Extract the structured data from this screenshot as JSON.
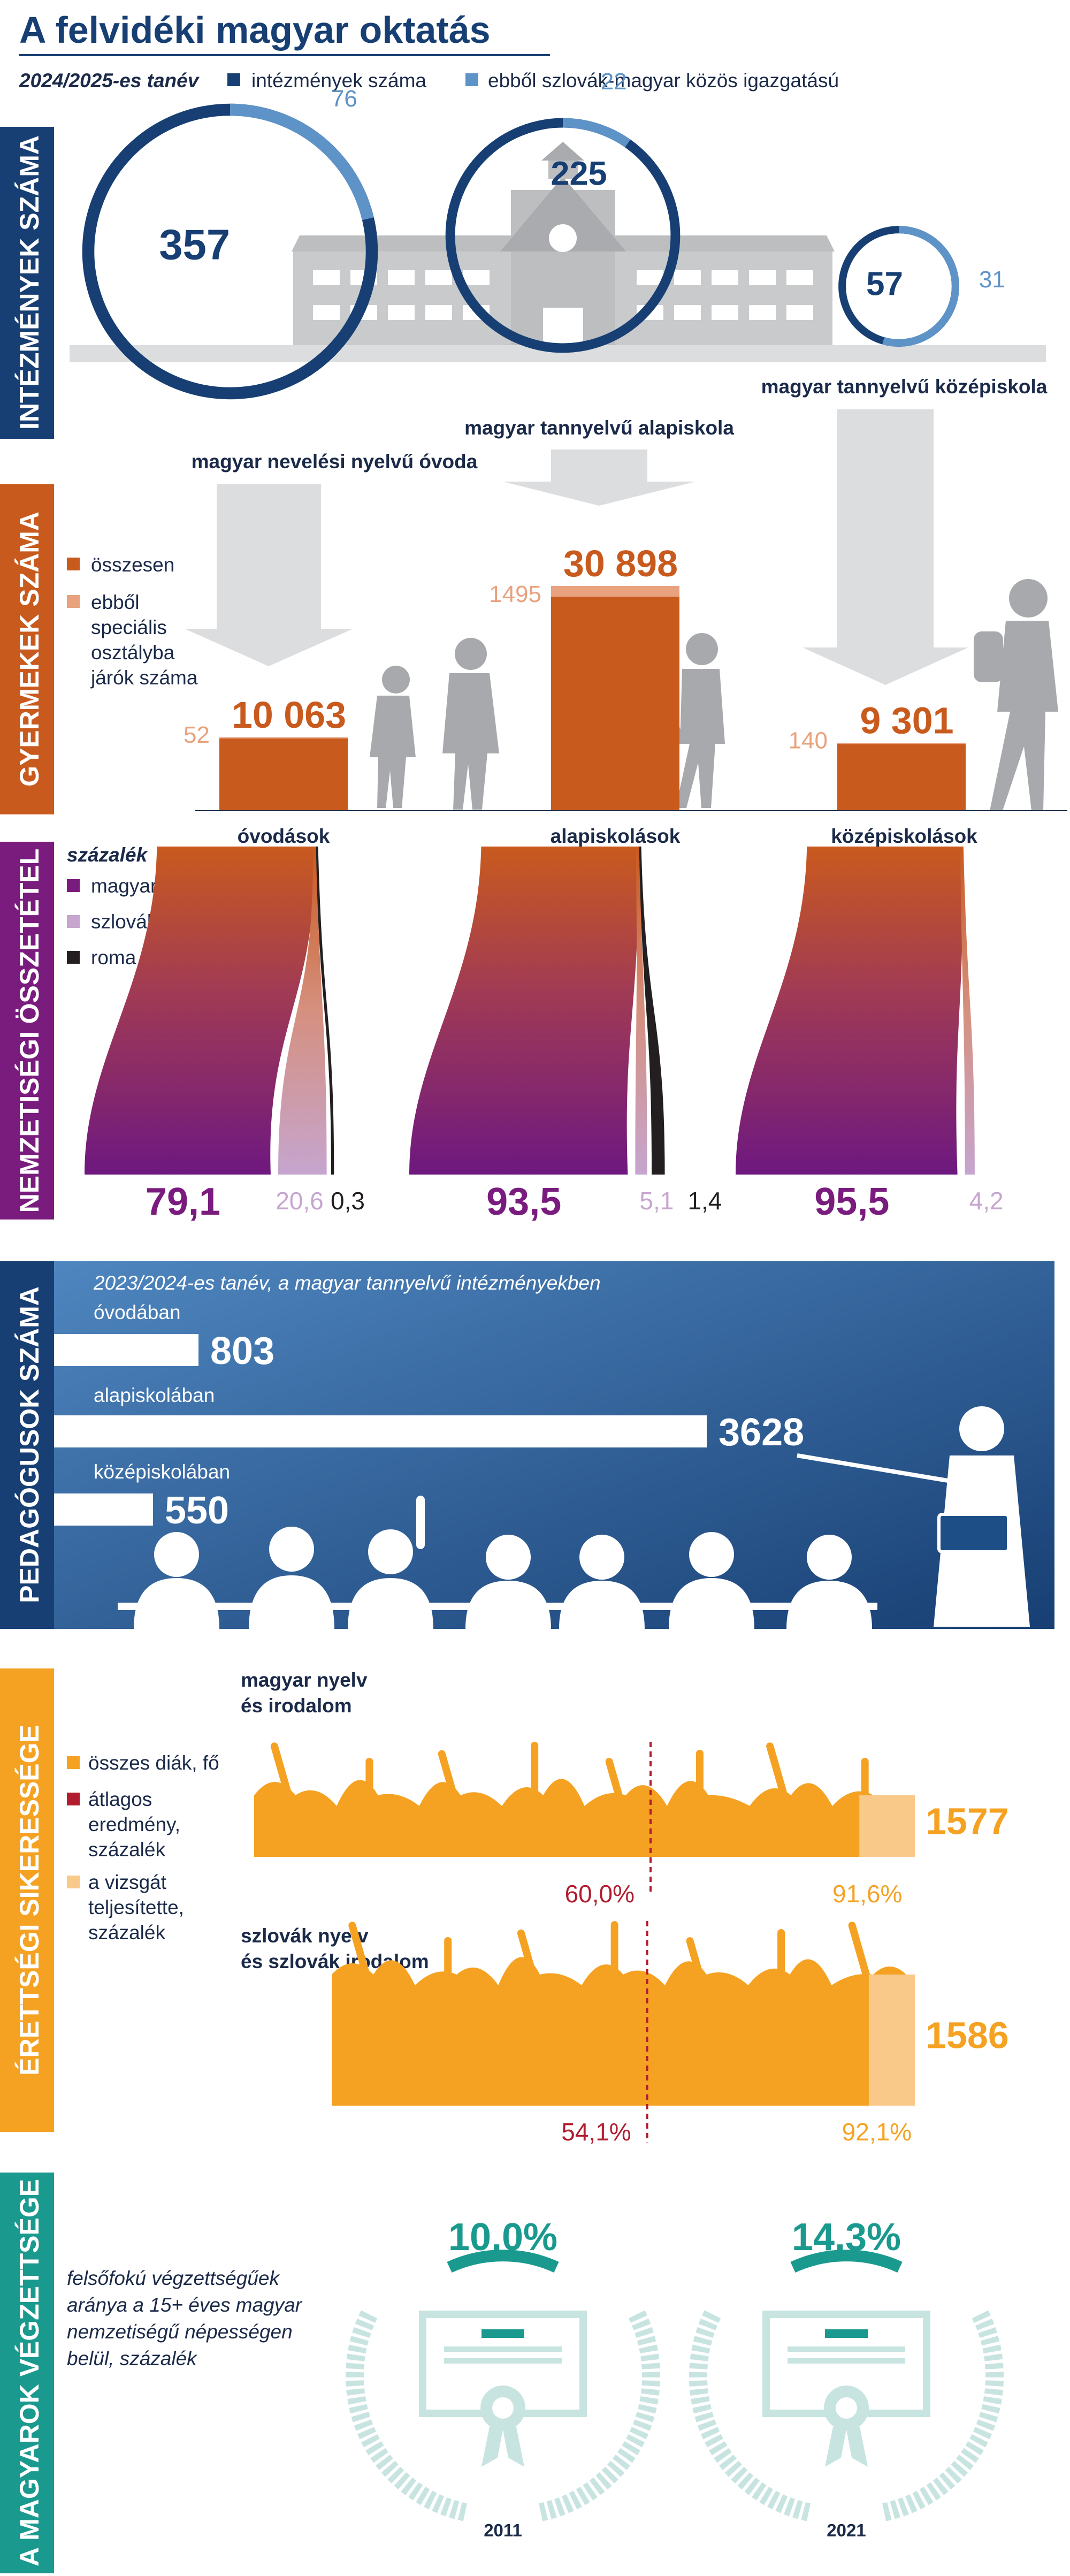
{
  "page": {
    "title": "A felvidéki magyar oktatás",
    "year_label": "2024/2025-es tanév",
    "legend": [
      {
        "label": "intézmények száma",
        "color": "#173f73"
      },
      {
        "label": "ebből szlovák-magyar közös igazgatású",
        "color": "#5e93c7"
      }
    ]
  },
  "sections": {
    "institutions": "INTÉZMÉNYEK SZÁMA",
    "children": "GYERMEKEK SZÁMA",
    "ethnicity": "NEMZETISÉGI ÖSSZETÉTEL",
    "teachers": "PEDAGÓGUSOK SZÁMA",
    "exam": "ÉRETTSÉGI SIKERESSÉGE",
    "degree": "A MAGYAROK VÉGZETTSÉGE"
  },
  "colors": {
    "navy": "#173f73",
    "lightblue": "#5e93c7",
    "orange": "#c95a1e",
    "lightorange": "#e8a27d",
    "purple": "#7a1b7e",
    "lilac": "#c6a5cf",
    "yellow": "#f5a223",
    "paleyellow": "#f9c98a",
    "red": "#b11d2e",
    "teal": "#1a9a8e",
    "gray": "#bcbec0"
  },
  "chart_data": [
    {
      "type": "other",
      "title": "",
      "categories": [
        "magyar nevelési nyelvű óvoda",
        "magyar tannyelvű alapiskola",
        "magyar tannyelvű középiskola"
      ],
      "series": [
        {
          "name": "intézmények száma",
          "values": [
            357,
            225,
            57
          ]
        },
        {
          "name": "ebből szlovák-magyar közös igazgatású",
          "values": [
            76,
            22,
            31
          ]
        }
      ]
    },
    {
      "type": "bar",
      "categories": [
        "óvodások",
        "alapiskolások",
        "középiskolások"
      ],
      "series": [
        {
          "name": "összesen",
          "values": [
            10063,
            30898,
            9301
          ],
          "labels": [
            "10 063",
            "30 898",
            "9 301"
          ]
        },
        {
          "name": "ebből speciális osztályba járók száma",
          "values": [
            52,
            1495,
            140
          ],
          "labels": [
            "52",
            "1495",
            "140"
          ]
        }
      ]
    },
    {
      "type": "area",
      "unit_label": "százalék",
      "categories": [
        "óvodások",
        "alapiskolások",
        "középiskolások"
      ],
      "series": [
        {
          "name": "magyar",
          "values": [
            79.1,
            93.5,
            95.5
          ],
          "labels": [
            "79,1",
            "93,5",
            "95,5"
          ]
        },
        {
          "name": "szlovák",
          "values": [
            20.6,
            5.1,
            4.2
          ],
          "labels": [
            "20,6",
            "5,1",
            "4,2"
          ]
        },
        {
          "name": "roma",
          "values": [
            0.3,
            1.4,
            null
          ],
          "labels": [
            "0,3",
            "1,4",
            ""
          ]
        }
      ]
    },
    {
      "type": "bar",
      "note": "2023/2024-es tanév, a magyar tannyelvű intézményekben",
      "categories": [
        "óvodában",
        "alapiskolában",
        "középiskolában"
      ],
      "values": [
        803,
        3628,
        550
      ],
      "labels": [
        "803",
        "3628",
        "550"
      ]
    },
    {
      "type": "bar",
      "legend": [
        "összes diák, fő",
        "átlagos eredmény, százalék",
        "a vizsgát teljesítette, százalék"
      ],
      "categories": [
        "magyar nyelv és irodalom",
        "szlovák nyelv és szlovák irodalom"
      ],
      "category_lines": [
        [
          "magyar nyelv",
          "és irodalom"
        ],
        [
          "szlovák nyelv",
          "és szlovák irodalom"
        ]
      ],
      "students": [
        1577,
        1586
      ],
      "average_result": [
        60.0,
        54.1
      ],
      "average_labels": [
        "60,0%",
        "54,1%"
      ],
      "passed": [
        91.6,
        92.1
      ],
      "passed_labels": [
        "91,6%",
        "92,1%"
      ]
    },
    {
      "type": "other",
      "note_lines": [
        "felsőfokú végzettségűek",
        "aránya a 15+ éves magyar",
        "nemzetiségű népességen",
        "belül, százalék"
      ],
      "categories": [
        "2011",
        "2021"
      ],
      "values": [
        10.0,
        14.3
      ],
      "labels": [
        "10,0%",
        "14,3%"
      ]
    }
  ]
}
